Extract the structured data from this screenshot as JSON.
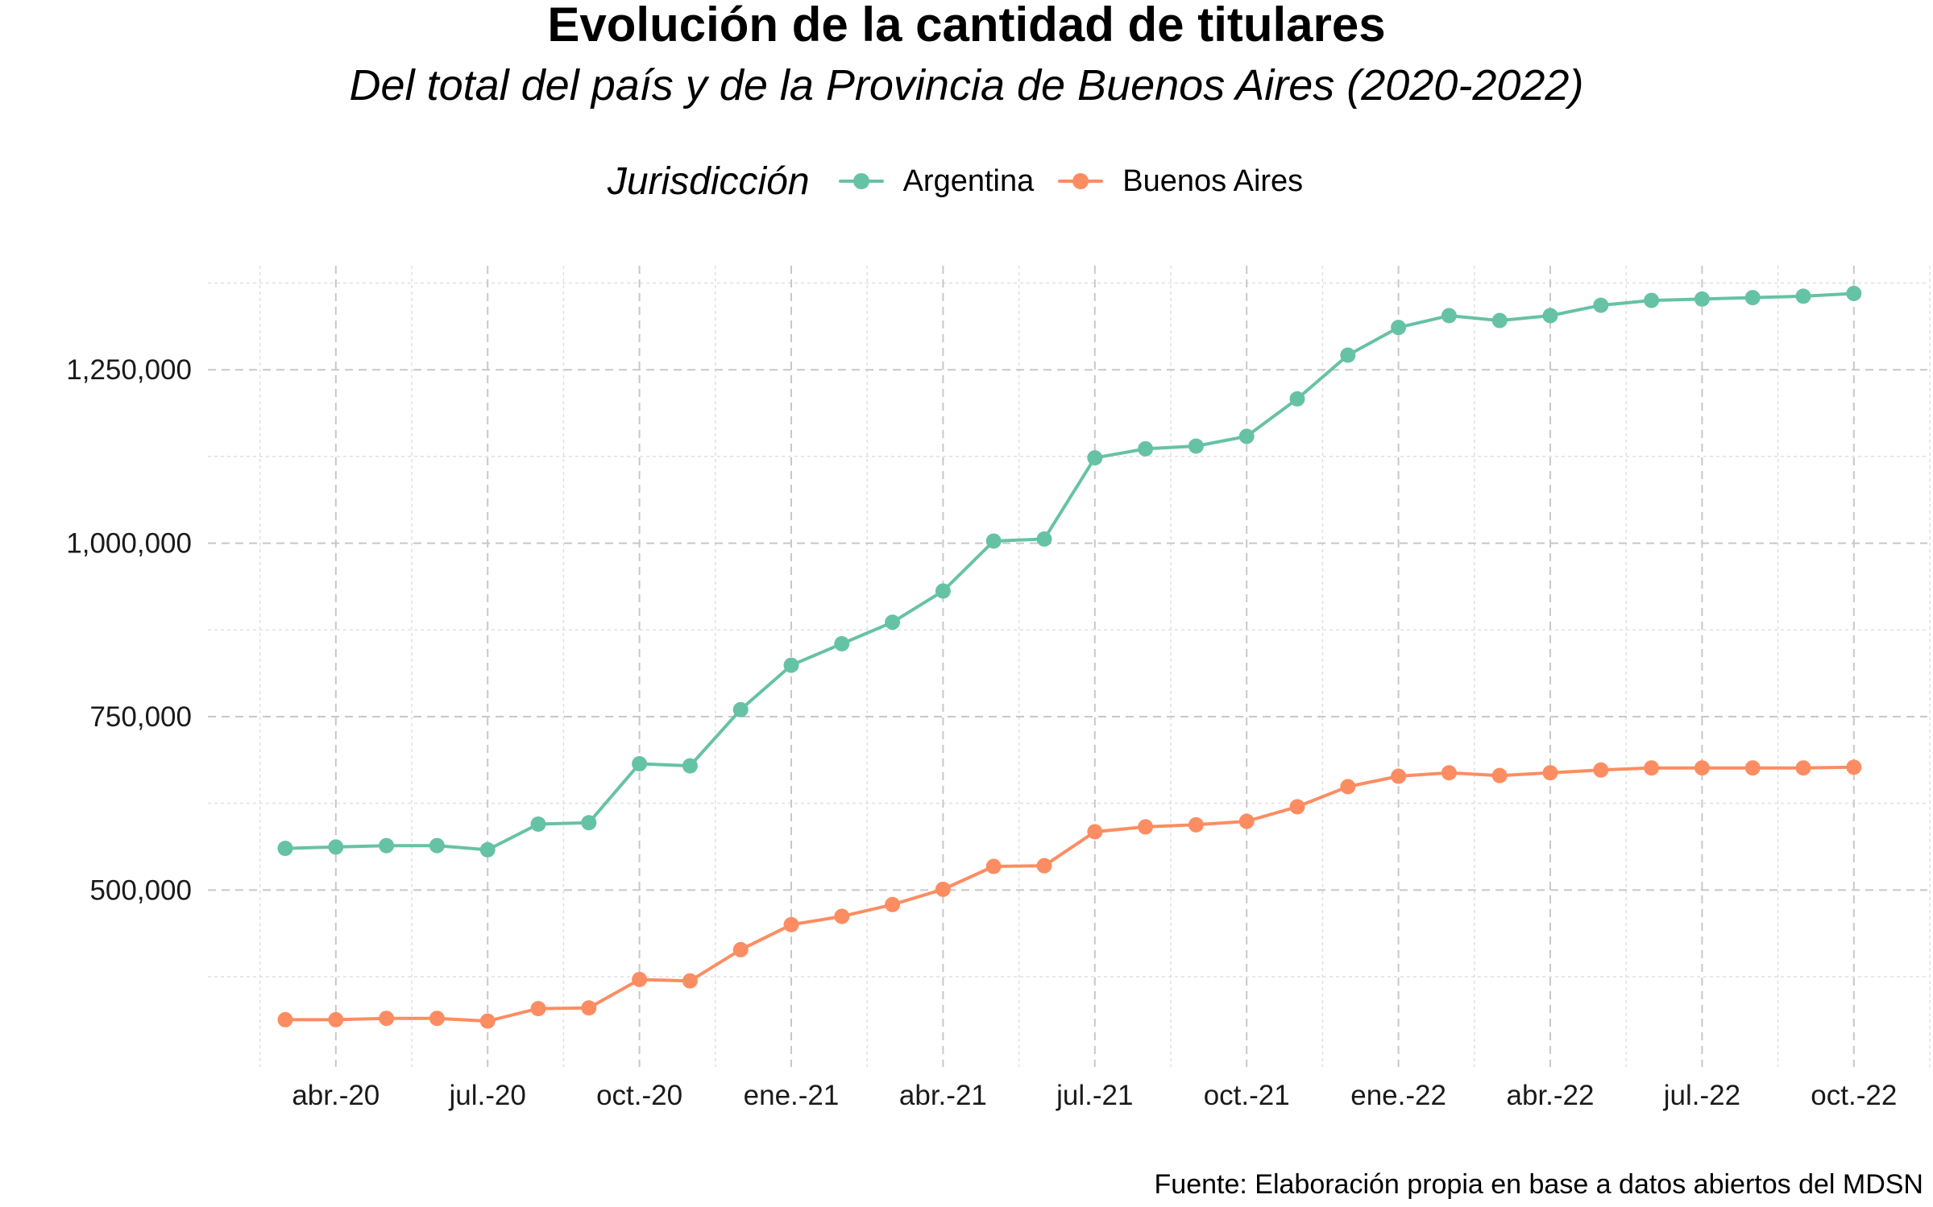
{
  "chart_data": {
    "type": "line",
    "title": "Evolución de la cantidad de titulares",
    "subtitle": "Del total del país y de la Provincia de Buenos Aires (2020-2022)",
    "caption": "Fuente: Elaboración propia en base a datos abiertos del MDSN",
    "legend": {
      "title": "Jurisdicción",
      "position": "top"
    },
    "x": [
      "2020-03",
      "2020-04",
      "2020-05",
      "2020-06",
      "2020-07",
      "2020-08",
      "2020-09",
      "2020-10",
      "2020-11",
      "2020-12",
      "2021-01",
      "2021-02",
      "2021-03",
      "2021-04",
      "2021-05",
      "2021-06",
      "2021-07",
      "2021-08",
      "2021-09",
      "2021-10",
      "2021-11",
      "2021-12",
      "2022-01",
      "2022-02",
      "2022-03",
      "2022-04",
      "2022-05",
      "2022-06",
      "2022-07",
      "2022-08",
      "2022-09",
      "2022-10"
    ],
    "x_ticks": [
      {
        "x": "2020-04",
        "label": "abr.-20"
      },
      {
        "x": "2020-07",
        "label": "jul.-20"
      },
      {
        "x": "2020-10",
        "label": "oct.-20"
      },
      {
        "x": "2021-01",
        "label": "ene.-21"
      },
      {
        "x": "2021-04",
        "label": "abr.-21"
      },
      {
        "x": "2021-07",
        "label": "jul.-21"
      },
      {
        "x": "2021-10",
        "label": "oct.-21"
      },
      {
        "x": "2022-01",
        "label": "ene.-22"
      },
      {
        "x": "2022-04",
        "label": "abr.-22"
      },
      {
        "x": "2022-07",
        "label": "jul.-22"
      },
      {
        "x": "2022-10",
        "label": "oct.-22"
      }
    ],
    "y_ticks": [
      {
        "value": 500000,
        "label": "500,000"
      },
      {
        "value": 750000,
        "label": "750,000"
      },
      {
        "value": 1000000,
        "label": "1,000,000"
      },
      {
        "value": 1250000,
        "label": "1,250,000"
      }
    ],
    "ylim": [
      245000,
      1400000
    ],
    "grid": true,
    "series": [
      {
        "name": "Argentina",
        "color": "#66c2a5",
        "values": [
          560000,
          562000,
          564000,
          564000,
          558000,
          595000,
          597000,
          682000,
          679000,
          760000,
          824000,
          855000,
          886000,
          931000,
          1003000,
          1006000,
          1123000,
          1136000,
          1140000,
          1154000,
          1208000,
          1271000,
          1311000,
          1328000,
          1321000,
          1328000,
          1343000,
          1350000,
          1352000,
          1354000,
          1356000,
          1360000
        ]
      },
      {
        "name": "Buenos Aires",
        "color": "#fc8d62",
        "values": [
          313000,
          313000,
          315000,
          315000,
          311000,
          329000,
          330000,
          371000,
          369000,
          414000,
          450000,
          462000,
          479000,
          501000,
          534000,
          535000,
          584000,
          591000,
          594000,
          599000,
          620000,
          649000,
          664000,
          669000,
          665000,
          669000,
          673000,
          676000,
          676000,
          676000,
          676000,
          677000
        ]
      }
    ]
  }
}
